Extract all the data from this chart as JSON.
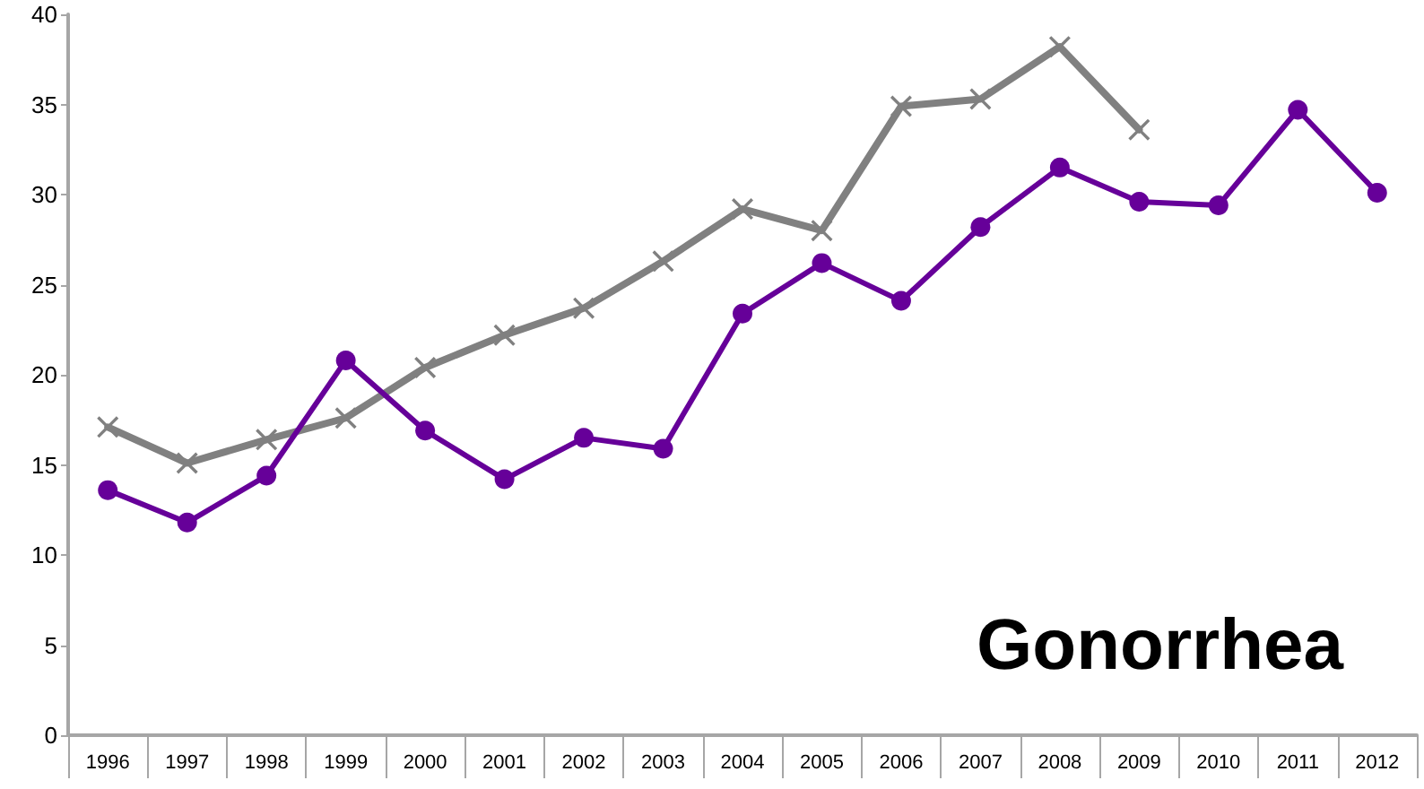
{
  "chart_data": {
    "type": "line",
    "title": "Gonorrhea",
    "categories": [
      "1996",
      "1997",
      "1998",
      "1999",
      "2000",
      "2001",
      "2002",
      "2003",
      "2004",
      "2005",
      "2006",
      "2007",
      "2008",
      "2009",
      "2010",
      "2011",
      "2012"
    ],
    "series": [
      {
        "color": "#660099",
        "marker": "circle",
        "values": [
          13.6,
          11.8,
          14.4,
          20.8,
          16.9,
          14.2,
          16.5,
          15.9,
          23.4,
          26.2,
          24.1,
          28.2,
          31.5,
          29.6,
          29.4,
          34.7,
          30.1
        ]
      },
      {
        "color": "#808080",
        "marker": "cross",
        "values": [
          17.1,
          15.1,
          16.4,
          17.6,
          20.4,
          22.2,
          23.7,
          26.3,
          29.2,
          28.0,
          34.9,
          35.3,
          38.2,
          33.6,
          null,
          null,
          null
        ]
      }
    ],
    "ylim": [
      0,
      40
    ],
    "yticks": [
      0,
      5,
      10,
      15,
      20,
      25,
      30,
      35,
      40
    ],
    "grid": false,
    "line_style": "solid"
  }
}
